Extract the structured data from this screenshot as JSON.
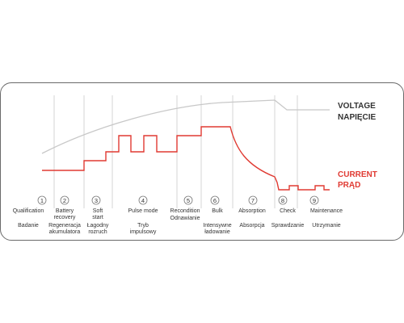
{
  "legend": {
    "voltage_en": "VOLTAGE",
    "voltage_pl": "NAPIĘCIE",
    "current_en": "CURRENT",
    "current_pl": "PRĄD"
  },
  "colors": {
    "voltage": "#c8c8c8",
    "current": "#e03a32",
    "grid": "#cccccc",
    "text": "#333333",
    "legend_voltage": "#333333",
    "legend_current": "#e03a32"
  },
  "stages": [
    {
      "number": "1",
      "label_en": "Qualification",
      "label_pl": "Badanie"
    },
    {
      "number": "2",
      "label_en": "Battery\nrecovery",
      "label_pl": "Regeneracja\nakumulatora"
    },
    {
      "number": "3",
      "label_en": "Soft\nstart",
      "label_pl": "Łagodny\nrozruch"
    },
    {
      "number": "4",
      "label_en": "Pulse mode",
      "label_pl": "Tryb\nimpulsowy"
    },
    {
      "number": "5",
      "label_en": "Recondition",
      "label_pl": "Odnawianie"
    },
    {
      "number": "6",
      "label_en": "Bulk",
      "label_pl": "Intensywne\nładowanie"
    },
    {
      "number": "7",
      "label_en": "Absorption",
      "label_pl": "Absorpcja"
    },
    {
      "number": "8",
      "label_en": "Check",
      "label_pl": "Sprawdzanie"
    },
    {
      "number": "9",
      "label_en": "Maintenance",
      "label_pl": "Utrzymanie"
    }
  ]
}
